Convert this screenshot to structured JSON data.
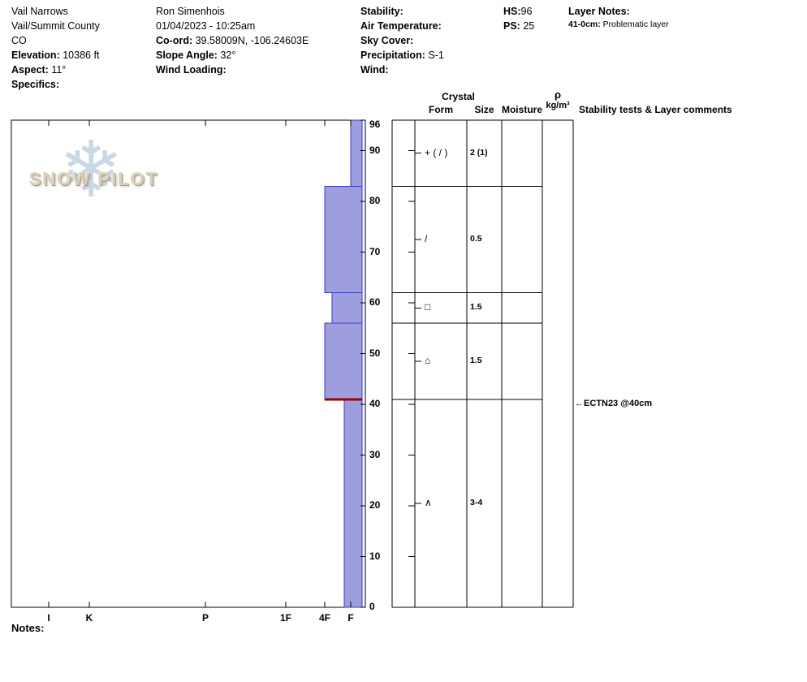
{
  "header": {
    "site": {
      "name": "Vail Narrows",
      "region": "Vail/Summit County",
      "state": "CO",
      "elevation_label": "Elevation:",
      "elevation_value": "10386 ft",
      "aspect_label": "Aspect:",
      "aspect_value": "11°",
      "specifics_label": "Specifics:"
    },
    "observer": {
      "name": "Ron Simenhois",
      "datetime": "01/04/2023 - 10:25am",
      "coord_label": "Co-ord:",
      "coord_value": "39.58009N, -106.24603E",
      "slope_angle_label": "Slope Angle:",
      "slope_angle_value": "32°",
      "wind_loading_label": "Wind Loading:"
    },
    "conditions": {
      "stability_label": "Stability:",
      "air_temperature_label": "Air Temperature:",
      "sky_cover_label": "Sky Cover:",
      "precipitation_label": "Precipitation:",
      "precipitation_value": "S-1",
      "wind_label": "Wind:"
    },
    "totals": {
      "hs_label": "HS:",
      "hs_value": "96",
      "ps_label": "PS:",
      "ps_value": "25"
    },
    "layer_notes": {
      "title": "Layer Notes:",
      "note_depth": "41-0cm:",
      "note_text": "Problematic layer"
    }
  },
  "logo": {
    "text": "SNOW PILOT",
    "snowflake_glyph": "❄"
  },
  "notes_label": "Notes:",
  "chart_data": {
    "type": "bar",
    "title": "Snow profile: layer hardness vs depth with crystal form, size and stability tests",
    "depth_axis": {
      "unit": "cm",
      "max_cm": 96,
      "ticks": [
        96,
        90,
        80,
        70,
        60,
        50,
        40,
        30,
        20,
        10,
        0
      ]
    },
    "hardness_axis": [
      "I",
      "K",
      "P",
      "1F",
      "4F",
      "F"
    ],
    "layers": [
      {
        "top_cm": 96,
        "bottom_cm": 83,
        "hardness": "F",
        "form": "+ ( / )",
        "size_mm": "2 (1)",
        "moisture": "",
        "density": ""
      },
      {
        "top_cm": 83,
        "bottom_cm": 62,
        "hardness": "4F",
        "form": "/",
        "size_mm": "0.5",
        "moisture": "",
        "density": ""
      },
      {
        "top_cm": 62,
        "bottom_cm": 56,
        "hardness": "4F+",
        "form": "□",
        "size_mm": "1.5",
        "moisture": "",
        "density": ""
      },
      {
        "top_cm": 56,
        "bottom_cm": 41,
        "hardness": "4F",
        "form": "⌂",
        "size_mm": "1.5",
        "moisture": "",
        "density": ""
      },
      {
        "top_cm": 41,
        "bottom_cm": 0,
        "hardness": "F+",
        "form": "∧",
        "size_mm": "3-4",
        "moisture": "",
        "density": ""
      }
    ],
    "problematic_layer_cm": 41,
    "stability_tests": [
      {
        "label": "←ECTN23 @40cm",
        "depth_cm": 40
      }
    ],
    "headers": {
      "crystal": "Crystal",
      "form": "Form",
      "size": "Size",
      "moisture": "Moisture",
      "density_symbol": "ρ",
      "density_unit": "kg/m³",
      "stability": "Stability tests & Layer comments"
    },
    "colors": {
      "bar_fill": "#9e9ede",
      "bar_stroke": "#3a3ac8",
      "problem_line": "#990000"
    }
  }
}
